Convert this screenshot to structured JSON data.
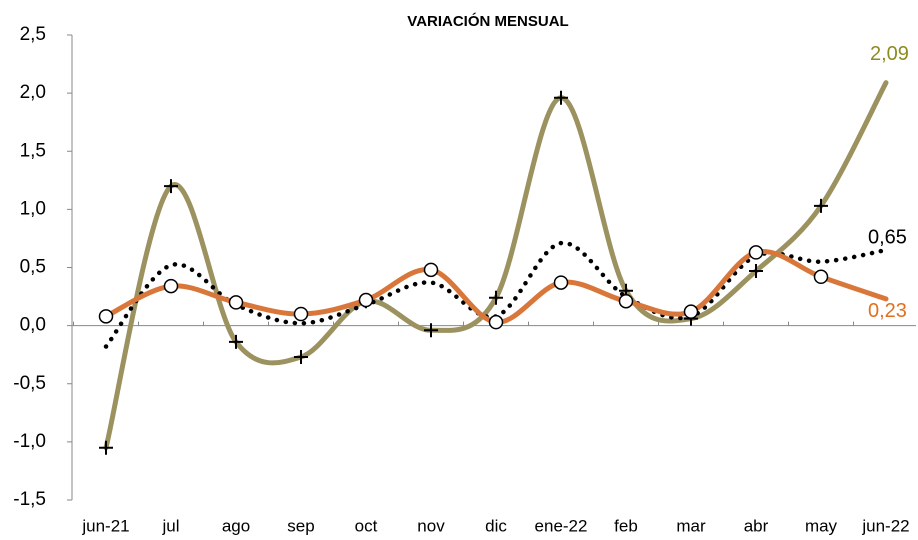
{
  "chart_data": {
    "type": "line",
    "title": "VARIACIÓN MENSUAL",
    "categories": [
      "jun-21",
      "jul",
      "ago",
      "sep",
      "oct",
      "nov",
      "dic",
      "ene-22",
      "feb",
      "mar",
      "abr",
      "may",
      "jun-22"
    ],
    "series": [
      {
        "color": "#9b9260",
        "marker": "plus",
        "style": "solid",
        "label_color": "#8c8c1e",
        "values": [
          -1.05,
          1.2,
          -0.14,
          -0.27,
          0.21,
          -0.04,
          0.24,
          1.96,
          0.3,
          0.06,
          0.47,
          1.03,
          2.09
        ],
        "value_labels": [
          null,
          null,
          null,
          null,
          null,
          null,
          null,
          null,
          null,
          null,
          null,
          null,
          "2,09"
        ]
      },
      {
        "color": "#000000",
        "marker": "none",
        "style": "dotted",
        "label_color": "#000000",
        "values": [
          -0.18,
          0.52,
          0.18,
          0.02,
          0.18,
          0.37,
          0.08,
          0.71,
          0.25,
          0.08,
          0.6,
          0.55,
          0.65
        ],
        "value_labels": [
          null,
          null,
          null,
          null,
          null,
          null,
          null,
          null,
          null,
          null,
          null,
          null,
          "0,65"
        ]
      },
      {
        "color": "#d9773a",
        "marker": "circle",
        "style": "solid",
        "label_color": "#e07020",
        "values": [
          0.08,
          0.34,
          0.2,
          0.1,
          0.22,
          0.48,
          0.03,
          0.37,
          0.21,
          0.12,
          0.63,
          0.42,
          0.23
        ],
        "value_labels": [
          null,
          null,
          null,
          null,
          null,
          null,
          null,
          null,
          null,
          null,
          null,
          null,
          "0,23"
        ]
      }
    ],
    "ylim": [
      -1.5,
      2.5
    ],
    "yticks": [
      {
        "value": -1.5,
        "label": "-1,5"
      },
      {
        "value": -1,
        "label": "-1,0"
      },
      {
        "value": -0.5,
        "label": "-0,5"
      },
      {
        "value": 0,
        "label": "0,0"
      },
      {
        "value": 0.5,
        "label": "0,5"
      },
      {
        "value": 1,
        "label": "1,0"
      },
      {
        "value": 1.5,
        "label": "1,5"
      },
      {
        "value": 2,
        "label": "2,0"
      },
      {
        "value": 2.5,
        "label": "2,5"
      }
    ],
    "grid": false
  }
}
